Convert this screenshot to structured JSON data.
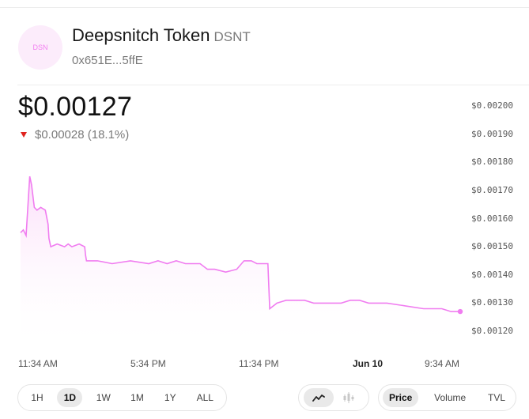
{
  "token": {
    "logo_text": "DSN",
    "name": "Deepsnitch Token",
    "symbol": "DSNT",
    "address": "0x651E...5ffE"
  },
  "price": {
    "current": "$0.00127",
    "change": "$0.00028 (18.1%)",
    "direction": "down",
    "down_color": "#e0231f"
  },
  "colors": {
    "line": "#f07cf0",
    "fill_top": "#fbdcf9"
  },
  "chart_data": {
    "type": "area",
    "x_tick_labels": [
      "11:34 AM",
      "5:34 PM",
      "11:34 PM",
      "Jun 10",
      "9:34 AM"
    ],
    "y_tick_labels": [
      "$0.00200",
      "$0.00190",
      "$0.00180",
      "$0.00170",
      "$0.00160",
      "$0.00150",
      "$0.00140",
      "$0.00130",
      "$0.00120"
    ],
    "ylim": [
      0.00117,
      0.00203
    ],
    "x_range_hours": [
      0,
      24
    ],
    "grid": false,
    "series": [
      {
        "points": [
          [
            0.0,
            0.00155
          ],
          [
            0.15,
            0.00156
          ],
          [
            0.3,
            0.00154
          ],
          [
            0.5,
            0.00175
          ],
          [
            0.6,
            0.00172
          ],
          [
            0.75,
            0.00164
          ],
          [
            0.9,
            0.00163
          ],
          [
            1.1,
            0.00164
          ],
          [
            1.35,
            0.00163
          ],
          [
            1.5,
            0.00158
          ],
          [
            1.55,
            0.00153
          ],
          [
            1.65,
            0.0015
          ],
          [
            2.0,
            0.00151
          ],
          [
            2.4,
            0.0015
          ],
          [
            2.6,
            0.00151
          ],
          [
            2.8,
            0.0015
          ],
          [
            3.2,
            0.00151
          ],
          [
            3.5,
            0.0015
          ],
          [
            3.55,
            0.00147
          ],
          [
            3.6,
            0.00145
          ],
          [
            4.2,
            0.00145
          ],
          [
            5.0,
            0.00144
          ],
          [
            6.0,
            0.00145
          ],
          [
            7.0,
            0.00144
          ],
          [
            7.5,
            0.00145
          ],
          [
            8.0,
            0.00144
          ],
          [
            8.5,
            0.00145
          ],
          [
            9.0,
            0.00144
          ],
          [
            9.8,
            0.00144
          ],
          [
            10.2,
            0.00142
          ],
          [
            10.6,
            0.00142
          ],
          [
            11.2,
            0.00141
          ],
          [
            11.8,
            0.00142
          ],
          [
            12.2,
            0.00145
          ],
          [
            12.6,
            0.00145
          ],
          [
            12.9,
            0.00144
          ],
          [
            13.3,
            0.00144
          ],
          [
            13.5,
            0.00144
          ],
          [
            13.6,
            0.00128
          ],
          [
            14.0,
            0.0013
          ],
          [
            14.5,
            0.00131
          ],
          [
            15.0,
            0.00131
          ],
          [
            15.5,
            0.00131
          ],
          [
            16.0,
            0.0013
          ],
          [
            17.0,
            0.0013
          ],
          [
            17.5,
            0.0013
          ],
          [
            18.0,
            0.00131
          ],
          [
            18.5,
            0.00131
          ],
          [
            19.0,
            0.0013
          ],
          [
            20.0,
            0.0013
          ],
          [
            21.0,
            0.00129
          ],
          [
            22.0,
            0.00128
          ],
          [
            23.0,
            0.00128
          ],
          [
            23.5,
            0.00127
          ],
          [
            24.0,
            0.00127
          ]
        ]
      }
    ]
  },
  "time_ranges": [
    "1H",
    "1D",
    "1W",
    "1M",
    "1Y",
    "ALL"
  ],
  "selected_time_range": "1D",
  "chart_types": [
    "line-chart-icon",
    "candlestick-chart-icon"
  ],
  "metrics": [
    "Price",
    "Volume",
    "TVL"
  ],
  "selected_metric": "Price"
}
